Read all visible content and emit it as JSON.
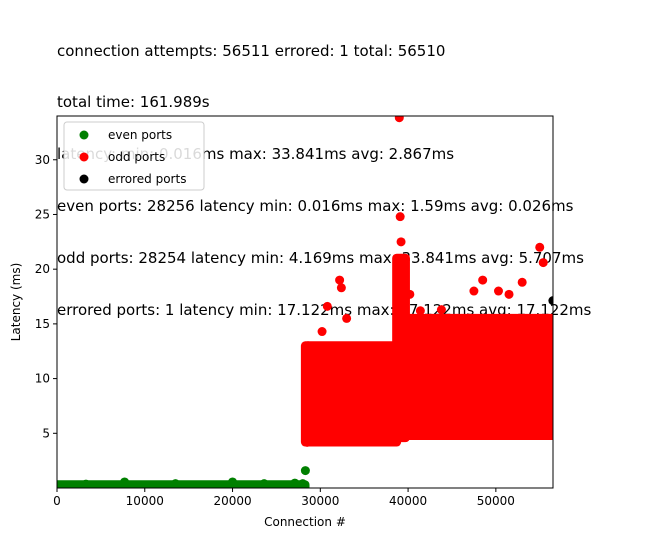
{
  "chart_data": {
    "type": "scatter",
    "title_lines": [
      "connection attempts: 56511 errored: 1 total: 56510",
      "total time: 161.989s",
      "latency: min: 0.016ms max: 33.841ms avg: 2.867ms",
      "even ports: 28256 latency min: 0.016ms max: 1.59ms avg: 0.026ms",
      "odd ports: 28254 latency min: 4.169ms max: 33.841ms avg: 5.707ms",
      "errored ports: 1 latency min: 17.122ms max: 17.122ms avg: 17.122ms"
    ],
    "xlabel": "Connection #",
    "ylabel": "Latency (ms)",
    "xlim": [
      0,
      56511
    ],
    "ylim": [
      0,
      34
    ],
    "xticks": [
      0,
      10000,
      20000,
      30000,
      40000,
      50000
    ],
    "yticks": [
      5,
      10,
      15,
      20,
      25,
      30
    ],
    "legend_position": "upper-left",
    "series": [
      {
        "name": "even ports",
        "color": "#008000",
        "points": [
          [
            0,
            0.03
          ],
          [
            3300,
            0.35
          ],
          [
            7700,
            0.55
          ],
          [
            13500,
            0.4
          ],
          [
            20000,
            0.55
          ],
          [
            23600,
            0.4
          ],
          [
            27100,
            0.45
          ],
          [
            28000,
            0.4
          ],
          [
            28300,
            1.59
          ]
        ]
      },
      {
        "name": "odd ports",
        "color": "#ff0000",
        "points": [
          [
            28500,
            4.17
          ],
          [
            28600,
            13.0
          ],
          [
            30200,
            14.3
          ],
          [
            30800,
            16.6
          ],
          [
            32200,
            19.0
          ],
          [
            32400,
            18.3
          ],
          [
            33000,
            15.5
          ],
          [
            38800,
            20.0
          ],
          [
            39000,
            33.84
          ],
          [
            39100,
            24.8
          ],
          [
            39200,
            22.5
          ],
          [
            40200,
            17.7
          ],
          [
            41400,
            16.2
          ],
          [
            43800,
            16.3
          ],
          [
            45600,
            15.5
          ],
          [
            47500,
            18.0
          ],
          [
            48500,
            19.0
          ],
          [
            50300,
            18.0
          ],
          [
            51500,
            17.7
          ],
          [
            53000,
            18.8
          ],
          [
            55000,
            22.0
          ],
          [
            55400,
            20.6
          ],
          [
            56000,
            15.0
          ]
        ]
      },
      {
        "name": "errored ports",
        "color": "#000000",
        "points": [
          [
            56500,
            17.122
          ]
        ]
      }
    ],
    "density_bands": [
      {
        "series": "even ports",
        "x_from": 0,
        "x_to": 28256,
        "y_low": 0.02,
        "y_high": 0.3
      },
      {
        "series": "odd ports",
        "x_from": 28300,
        "x_to": 38700,
        "y_low": 4.2,
        "y_high": 13.0
      },
      {
        "series": "odd ports",
        "x_from": 38700,
        "x_to": 39700,
        "y_low": 4.6,
        "y_high": 21.0
      },
      {
        "series": "odd ports",
        "x_from": 39700,
        "x_to": 56511,
        "y_low": 4.8,
        "y_high": 15.5
      }
    ]
  }
}
